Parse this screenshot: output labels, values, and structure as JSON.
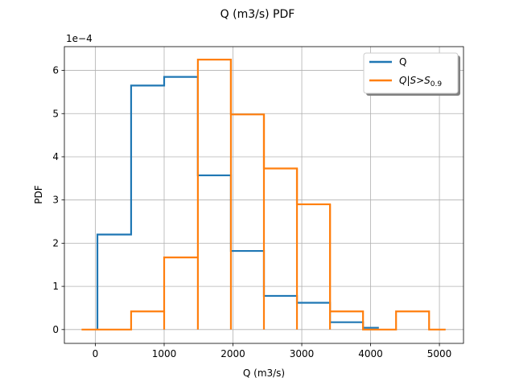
{
  "chart_data": {
    "type": "line",
    "title": "Q (m3/s) PDF",
    "xlabel": "Q (m3/s)",
    "ylabel": "PDF",
    "y_offset_text": "1e−4",
    "y_scale": 0.0001,
    "xlim": [
      -450,
      5350
    ],
    "ylim": [
      -0.32,
      6.55
    ],
    "x_ticks": [
      0,
      1000,
      2000,
      3000,
      4000,
      5000
    ],
    "x_tick_labels": [
      "0",
      "1000",
      "2000",
      "3000",
      "4000",
      "5000"
    ],
    "y_ticks": [
      0,
      1,
      2,
      3,
      4,
      5,
      6
    ],
    "y_tick_labels": [
      "0",
      "1",
      "2",
      "3",
      "4",
      "5",
      "6"
    ],
    "grid": true,
    "legend_position": "upper right",
    "series": [
      {
        "name": "Q",
        "color": "#1f77b4",
        "x": [
          30,
          30,
          520,
          520,
          1000,
          1000,
          1490,
          1490,
          1970,
          1970,
          2450,
          2450,
          2930,
          2930,
          3410,
          3410,
          3890,
          3890,
          4120
        ],
        "y": [
          0,
          2.2,
          2.2,
          5.65,
          5.65,
          5.85,
          5.85,
          3.57,
          3.57,
          1.82,
          1.82,
          0.78,
          0.78,
          0.62,
          0.62,
          0.17,
          0.17,
          0.04,
          0.04
        ]
      },
      {
        "name": "Q|S>S",
        "name_subscript": "0.9",
        "color": "#ff7f0e",
        "x": [
          -200,
          520,
          520,
          1000,
          1000,
          1490,
          1490,
          1970,
          1970,
          2450,
          2450,
          2930,
          2930,
          3410,
          3410,
          3890,
          3890,
          4370,
          4370,
          4850,
          4850,
          5090
        ],
        "y": [
          0,
          0,
          0.42,
          0.42,
          1.67,
          1.67,
          6.25,
          6.25,
          4.98,
          4.98,
          3.73,
          3.73,
          2.9,
          2.9,
          0.42,
          0.42,
          0,
          0,
          0.42,
          0.42,
          0,
          0
        ]
      }
    ],
    "drops": [
      {
        "series": 1,
        "x": 1000,
        "from": 0.42,
        "to": 0
      },
      {
        "series": 1,
        "x": 1490,
        "from": 1.67,
        "to": 0
      },
      {
        "series": 1,
        "x": 1970,
        "from": 6.25,
        "to": 0
      },
      {
        "series": 1,
        "x": 2450,
        "from": 4.98,
        "to": 0
      },
      {
        "series": 1,
        "x": 2930,
        "from": 3.73,
        "to": 0
      },
      {
        "series": 1,
        "x": 3410,
        "from": 2.9,
        "to": 0
      }
    ]
  }
}
